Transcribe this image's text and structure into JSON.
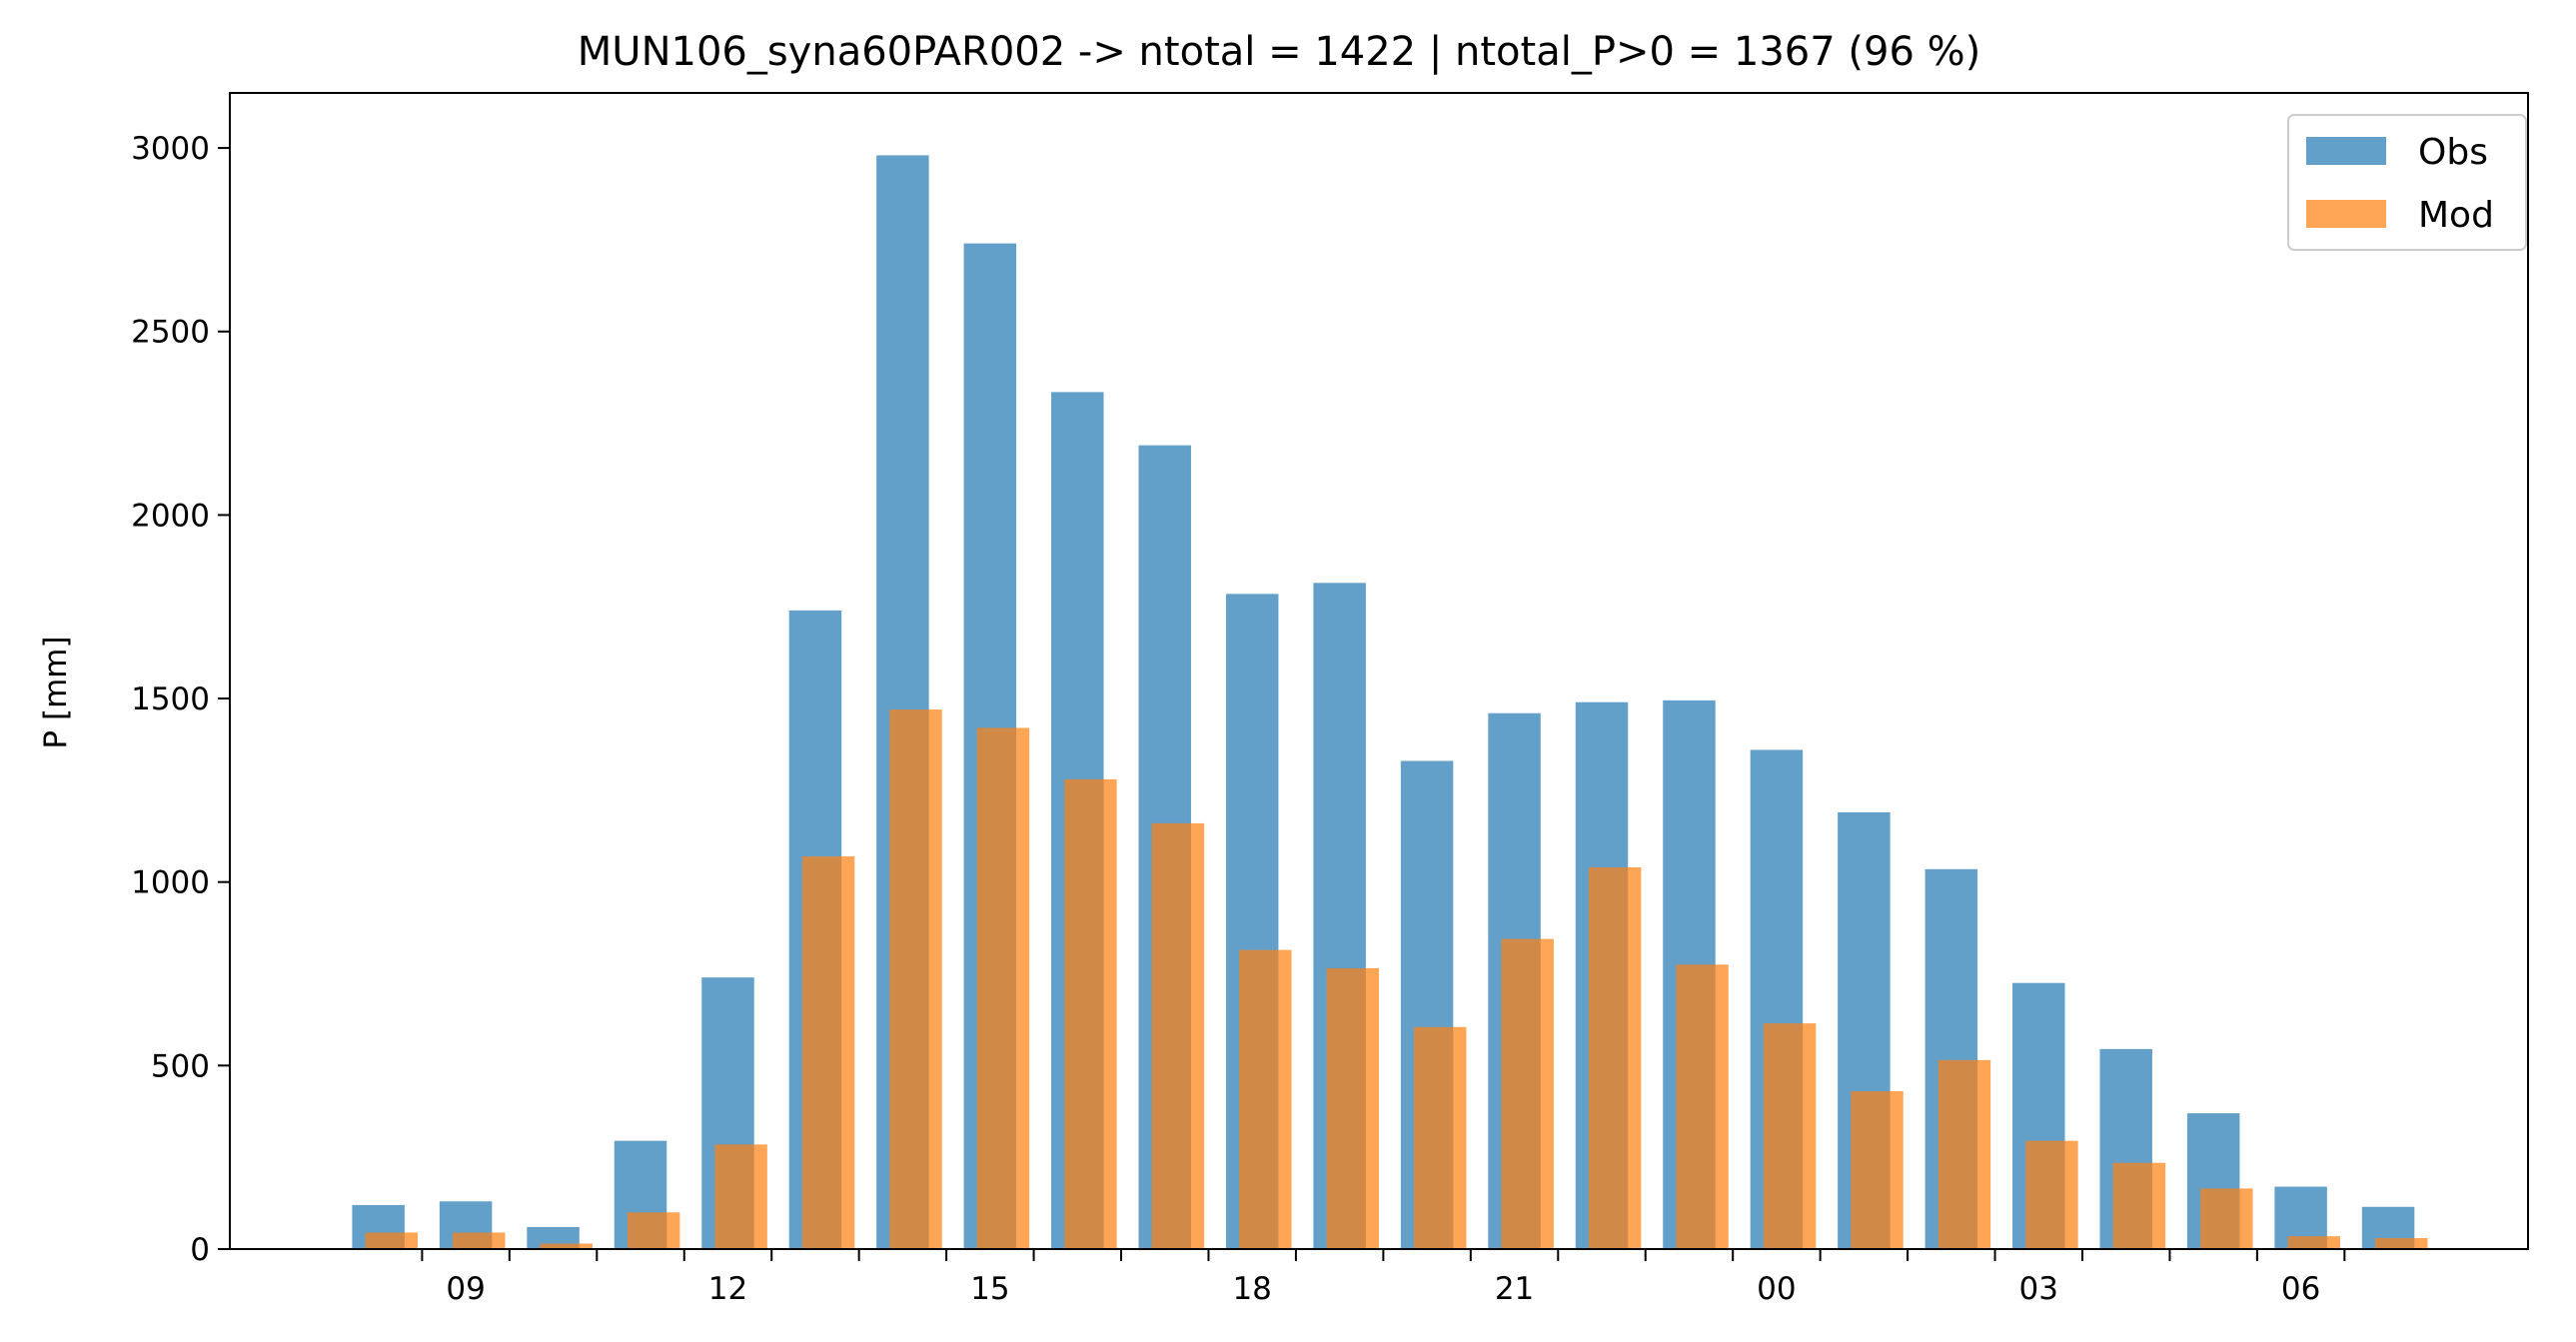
{
  "chart_data": {
    "type": "bar",
    "title": "MUN106_syna60PAR002 -> ntotal = 1422 | ntotal_P>0 = 1367 (96 %)",
    "xlabel": "",
    "ylabel": "P [mm]",
    "ylim": [
      0,
      3150
    ],
    "yticks": [
      0,
      500,
      1000,
      1500,
      2000,
      2500,
      3000
    ],
    "x_hours": [
      8,
      9,
      10,
      11,
      12,
      13,
      14,
      15,
      16,
      17,
      18,
      19,
      20,
      21,
      22,
      23,
      24,
      25,
      26,
      27,
      28,
      29,
      30,
      31
    ],
    "xtick_labels": [
      {
        "hour": 9,
        "label": "09"
      },
      {
        "hour": 12,
        "label": "12"
      },
      {
        "hour": 15,
        "label": "15"
      },
      {
        "hour": 18,
        "label": "18"
      },
      {
        "hour": 21,
        "label": "21"
      },
      {
        "hour": 24,
        "label": "00"
      },
      {
        "hour": 27,
        "label": "03"
      },
      {
        "hour": 30,
        "label": "06"
      }
    ],
    "series": [
      {
        "name": "Obs",
        "color": "#1f77b4",
        "values": [
          120,
          130,
          60,
          295,
          740,
          1740,
          2980,
          2740,
          2335,
          2190,
          1785,
          1815,
          1330,
          1460,
          1490,
          1495,
          1360,
          1190,
          1035,
          725,
          545,
          370,
          170,
          115
        ]
      },
      {
        "name": "Mod",
        "color": "#ff7f0e",
        "values": [
          45,
          45,
          15,
          100,
          285,
          1070,
          1470,
          1420,
          1280,
          1160,
          815,
          765,
          605,
          845,
          1040,
          775,
          615,
          430,
          515,
          295,
          235,
          165,
          35,
          30
        ]
      }
    ],
    "legend": "top-right",
    "grid": false
  }
}
